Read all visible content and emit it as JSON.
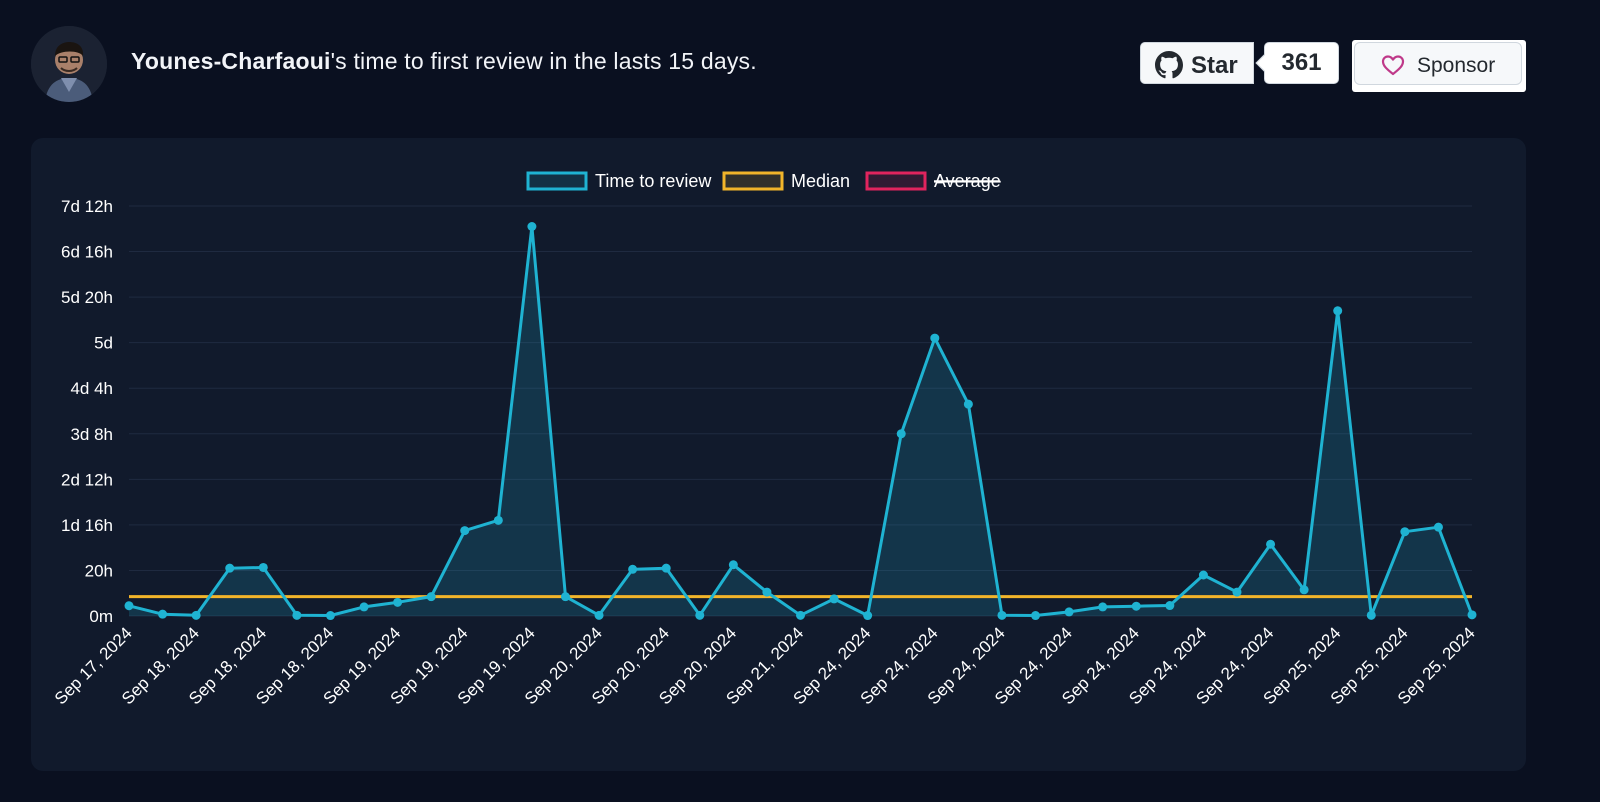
{
  "header": {
    "username": "Younes-Charfaoui",
    "title_rest": "'s time to first review in the lasts 15 days.",
    "star_label": "Star",
    "star_count": "361",
    "sponsor_label": "Sponsor"
  },
  "icons": {
    "avatar": "avatar",
    "github": "github-icon",
    "heart": "heart-icon"
  },
  "colors": {
    "background": "#0a1020",
    "card": "#111a2c",
    "series_review": "#1fb3d2",
    "series_median": "#f2b52a",
    "series_average": "#e0245e"
  },
  "chart_data": {
    "type": "line",
    "legend": [
      {
        "name": "Time to review",
        "color": "#1fb3d2",
        "hidden": false
      },
      {
        "name": "Median",
        "color": "#f2b52a",
        "hidden": false
      },
      {
        "name": "Average",
        "color": "#e0245e",
        "hidden": true
      }
    ],
    "legend_position": "top-center",
    "y_unit": "hours",
    "ylim": [
      0,
      180
    ],
    "y_ticks": [
      {
        "value": 180,
        "label": "7d 12h"
      },
      {
        "value": 160,
        "label": "6d 16h"
      },
      {
        "value": 140,
        "label": "5d 20h"
      },
      {
        "value": 120,
        "label": "5d"
      },
      {
        "value": 100,
        "label": "4d 4h"
      },
      {
        "value": 80,
        "label": "3d 8h"
      },
      {
        "value": 60,
        "label": "2d 12h"
      },
      {
        "value": 40,
        "label": "1d 16h"
      },
      {
        "value": 20,
        "label": "20h"
      },
      {
        "value": 0,
        "label": "0m"
      }
    ],
    "grid": true,
    "x_tick_labels": [
      "Sep 17, 2024",
      "Sep 18, 2024",
      "Sep 18, 2024",
      "Sep 18, 2024",
      "Sep 19, 2024",
      "Sep 19, 2024",
      "Sep 19, 2024",
      "Sep 20, 2024",
      "Sep 20, 2024",
      "Sep 20, 2024",
      "Sep 21, 2024",
      "Sep 24, 2024",
      "Sep 24, 2024",
      "Sep 24, 2024",
      "Sep 24, 2024",
      "Sep 24, 2024",
      "Sep 24, 2024",
      "Sep 24, 2024",
      "Sep 25, 2024",
      "Sep 25, 2024",
      "Sep 25, 2024"
    ],
    "series": [
      {
        "name": "Time to review",
        "values": [
          4.5,
          0.8,
          0.3,
          21,
          21.3,
          0.3,
          0.2,
          4,
          6,
          8.5,
          37.5,
          42,
          171,
          8.5,
          0.3,
          20.5,
          21,
          0.3,
          22.5,
          10.5,
          0.3,
          7.5,
          0.2,
          80,
          122,
          93,
          0.3,
          0.2,
          1.8,
          4,
          4.3,
          4.6,
          18,
          10.5,
          31.5,
          11.5,
          134,
          0.3,
          37,
          39,
          0.5
        ]
      },
      {
        "name": "Median",
        "values": [
          8.5
        ]
      }
    ]
  }
}
